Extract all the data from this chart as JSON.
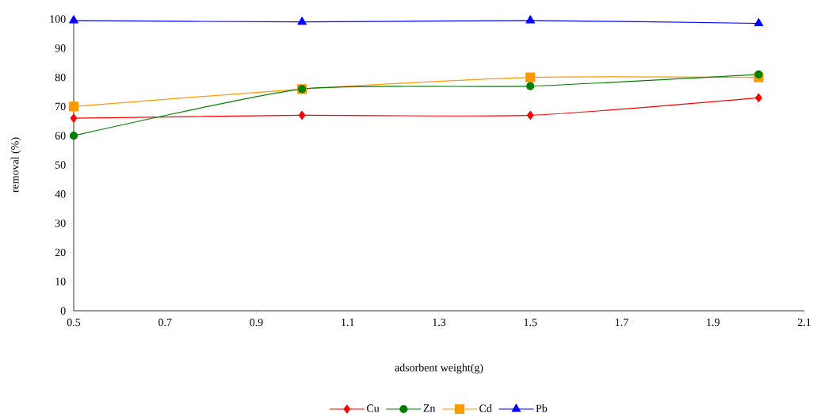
{
  "chart_data": {
    "type": "line",
    "xlabel": "adsorbent weight(g)",
    "ylabel": "removal (%)",
    "x": [
      0.5,
      1.0,
      1.5,
      2.0
    ],
    "series": [
      {
        "name": "Cu",
        "color": "#ff0000",
        "marker": "diamond",
        "values": [
          66,
          67,
          67,
          73
        ]
      },
      {
        "name": "Zn",
        "color": "#008000",
        "marker": "circle",
        "values": [
          60,
          76,
          77,
          81
        ]
      },
      {
        "name": "Cd",
        "color": "#ff9900",
        "marker": "square",
        "values": [
          70,
          76,
          80,
          80
        ]
      },
      {
        "name": "Pb",
        "color": "#0000ff",
        "marker": "triangle",
        "values": [
          99.5,
          99,
          99.5,
          98.5
        ]
      }
    ],
    "xlim": [
      0.5,
      2.1
    ],
    "xticks": [
      0.5,
      0.7,
      0.9,
      1.1,
      1.3,
      1.5,
      1.7,
      1.9,
      2.1
    ],
    "ylim": [
      0,
      100
    ],
    "yticks": [
      0,
      10,
      20,
      30,
      40,
      50,
      60,
      70,
      80,
      90,
      100
    ],
    "grid": false,
    "legend": "bottom",
    "line_style": "solid"
  }
}
